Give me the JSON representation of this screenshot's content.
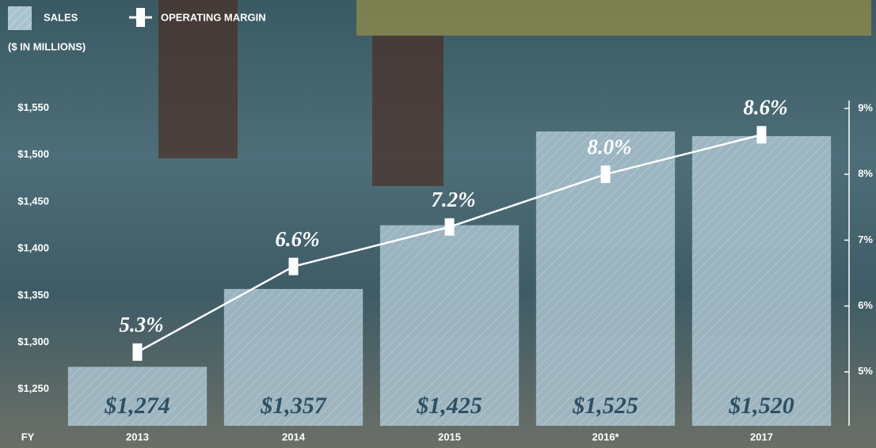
{
  "chart_data": {
    "type": "bar-line",
    "subtitle": "($ IN MILLIONS)",
    "x_label": "FY",
    "categories": [
      "2013",
      "2014",
      "2015",
      "2016*",
      "2017"
    ],
    "series": [
      {
        "name": "SALES",
        "type": "bar",
        "color": "#a9c2cf",
        "values": [
          1274,
          1357,
          1425,
          1525,
          1520
        ],
        "value_labels": [
          "$1,274",
          "$1,357",
          "$1,425",
          "$1,525",
          "$1,520"
        ]
      },
      {
        "name": "OPERATING MARGIN",
        "type": "line",
        "axis": "y2",
        "color": "#ffffff",
        "values": [
          5.3,
          6.6,
          7.2,
          8.0,
          8.6
        ],
        "value_labels": [
          "5.3%",
          "6.6%",
          "7.2%",
          "8.0%",
          "8.6%"
        ]
      }
    ],
    "ylim": [
      1211,
      1558
    ],
    "yticks": [
      {
        "value": 1250,
        "label": "$1,250"
      },
      {
        "value": 1300,
        "label": "$1,300"
      },
      {
        "value": 1350,
        "label": "$1,350"
      },
      {
        "value": 1400,
        "label": "$1,400"
      },
      {
        "value": 1450,
        "label": "$1,450"
      },
      {
        "value": 1500,
        "label": "$1,500"
      },
      {
        "value": 1550,
        "label": "$1,550"
      }
    ],
    "y2lim": [
      4.18,
      9.12
    ],
    "y2ticks": [
      {
        "value": 5,
        "label": "5%"
      },
      {
        "value": 6,
        "label": "6%"
      },
      {
        "value": 7,
        "label": "7%"
      },
      {
        "value": 8,
        "label": "8%"
      },
      {
        "value": 9,
        "label": "9%"
      }
    ]
  }
}
